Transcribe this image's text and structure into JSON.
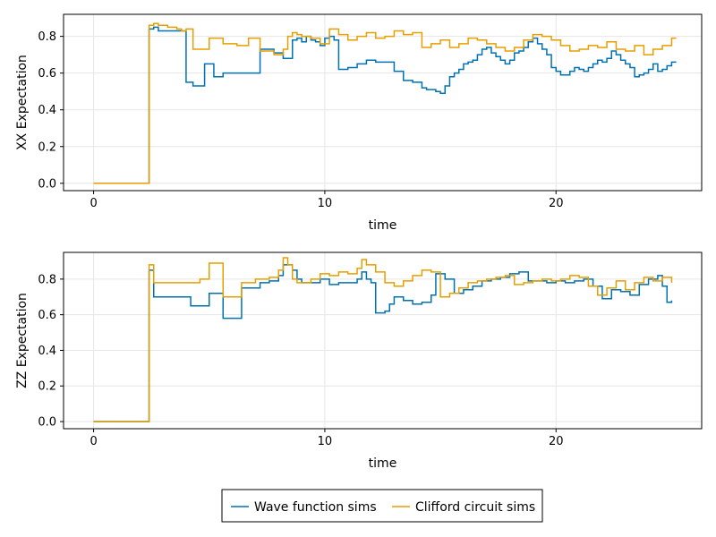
{
  "chart_data": [
    {
      "type": "line",
      "style": "step",
      "xlabel": "time",
      "ylabel": "XX Expectation",
      "xlim": [
        -1.3,
        26.3
      ],
      "ylim": [
        -0.04,
        0.92
      ],
      "xticks": [
        0,
        10,
        20
      ],
      "xtick_labels": [
        "0",
        "10",
        "20"
      ],
      "yticks": [
        0,
        0.2,
        0.4,
        0.6,
        0.8
      ],
      "ytick_labels": [
        "0.0",
        "0.2",
        "0.4",
        "0.6",
        "0.8"
      ],
      "grid": true,
      "series": [
        {
          "name": "Wave function sims",
          "color": "#0072b2",
          "x": [
            0,
            2.4,
            2.6,
            2.8,
            4.0,
            4.3,
            4.8,
            5.2,
            5.6,
            6.3,
            7.2,
            7.8,
            8.2,
            8.4,
            8.6,
            8.8,
            9.0,
            9.2,
            9.4,
            9.6,
            9.8,
            10.0,
            10.2,
            10.4,
            10.6,
            11.0,
            11.4,
            11.8,
            12.2,
            13.0,
            13.4,
            13.8,
            14.2,
            14.4,
            14.8,
            15.0,
            15.2,
            15.4,
            15.6,
            15.8,
            16.0,
            16.2,
            16.4,
            16.6,
            16.8,
            17.0,
            17.2,
            17.4,
            17.6,
            17.8,
            18.0,
            18.2,
            18.4,
            18.6,
            18.8,
            19.0,
            19.2,
            19.4,
            19.6,
            19.8,
            20.0,
            20.2,
            20.6,
            20.8,
            21.0,
            21.2,
            21.4,
            21.6,
            21.8,
            22.0,
            22.2,
            22.4,
            22.6,
            22.8,
            23.0,
            23.2,
            23.4,
            23.6,
            23.8,
            24.0,
            24.2,
            24.4,
            24.6,
            24.8,
            25.0,
            25.2
          ],
          "y": [
            0,
            0.84,
            0.85,
            0.83,
            0.55,
            0.53,
            0.65,
            0.58,
            0.6,
            0.6,
            0.73,
            0.71,
            0.68,
            0.68,
            0.78,
            0.79,
            0.77,
            0.8,
            0.78,
            0.77,
            0.75,
            0.79,
            0.8,
            0.78,
            0.62,
            0.63,
            0.65,
            0.67,
            0.66,
            0.61,
            0.56,
            0.55,
            0.52,
            0.51,
            0.5,
            0.49,
            0.53,
            0.58,
            0.6,
            0.62,
            0.65,
            0.66,
            0.67,
            0.7,
            0.73,
            0.74,
            0.71,
            0.69,
            0.67,
            0.65,
            0.67,
            0.71,
            0.72,
            0.74,
            0.77,
            0.79,
            0.76,
            0.73,
            0.7,
            0.63,
            0.61,
            0.59,
            0.61,
            0.63,
            0.62,
            0.61,
            0.63,
            0.65,
            0.67,
            0.66,
            0.68,
            0.72,
            0.7,
            0.67,
            0.65,
            0.63,
            0.58,
            0.59,
            0.6,
            0.62,
            0.65,
            0.61,
            0.62,
            0.64,
            0.66,
            0.66
          ]
        },
        {
          "name": "Clifford circuit sims",
          "color": "#e69f00",
          "x": [
            0,
            2.4,
            2.6,
            2.8,
            3.0,
            3.2,
            3.4,
            3.6,
            3.8,
            4.0,
            4.3,
            5.0,
            5.6,
            6.2,
            6.7,
            7.2,
            7.8,
            8.2,
            8.4,
            8.6,
            8.8,
            9.0,
            9.4,
            9.8,
            10.2,
            10.6,
            11.0,
            11.4,
            11.8,
            12.2,
            12.6,
            13.0,
            13.4,
            13.8,
            14.2,
            14.6,
            15.0,
            15.4,
            15.8,
            16.2,
            16.6,
            17.0,
            17.4,
            17.8,
            18.2,
            18.6,
            19.0,
            19.4,
            19.8,
            20.2,
            20.6,
            21.0,
            21.4,
            21.8,
            22.2,
            22.6,
            23.0,
            23.4,
            23.8,
            24.2,
            24.6,
            25.0,
            25.2
          ],
          "y": [
            0,
            0.86,
            0.87,
            0.86,
            0.86,
            0.85,
            0.85,
            0.84,
            0.83,
            0.84,
            0.73,
            0.79,
            0.76,
            0.75,
            0.79,
            0.72,
            0.7,
            0.73,
            0.8,
            0.82,
            0.81,
            0.8,
            0.79,
            0.76,
            0.84,
            0.81,
            0.78,
            0.8,
            0.82,
            0.79,
            0.8,
            0.83,
            0.81,
            0.82,
            0.74,
            0.76,
            0.78,
            0.74,
            0.76,
            0.79,
            0.78,
            0.76,
            0.74,
            0.72,
            0.74,
            0.78,
            0.81,
            0.8,
            0.78,
            0.75,
            0.72,
            0.73,
            0.75,
            0.74,
            0.77,
            0.73,
            0.72,
            0.75,
            0.7,
            0.73,
            0.75,
            0.79,
            0.79
          ]
        }
      ]
    },
    {
      "type": "line",
      "style": "step",
      "xlabel": "time",
      "ylabel": "ZZ Expectation",
      "xlim": [
        -1.3,
        26.3
      ],
      "ylim": [
        -0.04,
        0.95
      ],
      "xticks": [
        0,
        10,
        20
      ],
      "xtick_labels": [
        "0",
        "10",
        "20"
      ],
      "yticks": [
        0,
        0.2,
        0.4,
        0.6,
        0.8
      ],
      "ytick_labels": [
        "0.0",
        "0.2",
        "0.4",
        "0.6",
        "0.8"
      ],
      "grid": true,
      "series": [
        {
          "name": "Wave function sims",
          "color": "#0072b2",
          "x": [
            0,
            2.4,
            2.6,
            4.2,
            5.0,
            5.6,
            6.4,
            7.2,
            7.6,
            8.0,
            8.2,
            8.6,
            8.8,
            9.0,
            9.4,
            9.8,
            10.2,
            10.6,
            11.0,
            11.4,
            11.6,
            11.8,
            12.0,
            12.2,
            12.6,
            12.8,
            13.0,
            13.4,
            13.8,
            14.2,
            14.6,
            14.8,
            15.2,
            15.6,
            16.0,
            16.4,
            16.8,
            17.2,
            17.6,
            18.0,
            18.4,
            18.8,
            19.2,
            19.6,
            20.0,
            20.4,
            20.8,
            21.2,
            21.6,
            22.0,
            22.4,
            22.8,
            23.2,
            23.6,
            24.0,
            24.4,
            24.6,
            24.8,
            25.0
          ],
          "y": [
            0,
            0.85,
            0.7,
            0.65,
            0.72,
            0.58,
            0.75,
            0.78,
            0.79,
            0.82,
            0.88,
            0.85,
            0.8,
            0.78,
            0.78,
            0.8,
            0.77,
            0.78,
            0.78,
            0.8,
            0.84,
            0.8,
            0.78,
            0.61,
            0.62,
            0.66,
            0.7,
            0.68,
            0.66,
            0.67,
            0.71,
            0.83,
            0.8,
            0.72,
            0.74,
            0.76,
            0.79,
            0.8,
            0.81,
            0.83,
            0.84,
            0.79,
            0.79,
            0.78,
            0.79,
            0.78,
            0.79,
            0.8,
            0.76,
            0.69,
            0.74,
            0.73,
            0.71,
            0.77,
            0.8,
            0.82,
            0.76,
            0.67,
            0.68
          ]
        },
        {
          "name": "Clifford circuit sims",
          "color": "#e69f00",
          "x": [
            0,
            2.4,
            2.6,
            3.0,
            4.6,
            5.0,
            5.6,
            6.4,
            7.0,
            7.6,
            8.0,
            8.2,
            8.4,
            8.6,
            8.8,
            9.0,
            9.4,
            9.8,
            10.2,
            10.6,
            11.0,
            11.4,
            11.6,
            11.8,
            12.2,
            12.6,
            13.0,
            13.4,
            13.8,
            14.2,
            14.6,
            15.0,
            15.4,
            15.8,
            16.2,
            16.6,
            17.0,
            17.4,
            17.8,
            18.2,
            18.6,
            19.0,
            19.4,
            19.8,
            20.2,
            20.6,
            21.0,
            21.4,
            21.8,
            22.2,
            22.6,
            23.0,
            23.4,
            23.8,
            24.2,
            24.6,
            25.0
          ],
          "y": [
            0,
            0.88,
            0.78,
            0.78,
            0.8,
            0.89,
            0.7,
            0.78,
            0.8,
            0.81,
            0.85,
            0.92,
            0.88,
            0.8,
            0.78,
            0.78,
            0.8,
            0.83,
            0.82,
            0.84,
            0.83,
            0.86,
            0.91,
            0.88,
            0.84,
            0.78,
            0.76,
            0.79,
            0.82,
            0.85,
            0.84,
            0.7,
            0.72,
            0.75,
            0.78,
            0.79,
            0.8,
            0.81,
            0.82,
            0.77,
            0.78,
            0.79,
            0.8,
            0.79,
            0.8,
            0.82,
            0.81,
            0.76,
            0.71,
            0.75,
            0.79,
            0.74,
            0.78,
            0.81,
            0.79,
            0.81,
            0.78
          ]
        }
      ]
    }
  ],
  "legend": {
    "placement": "bottom-center",
    "entries": [
      {
        "label": "Wave function sims",
        "color": "#0072b2"
      },
      {
        "label": "Clifford circuit sims",
        "color": "#e69f00"
      }
    ]
  }
}
